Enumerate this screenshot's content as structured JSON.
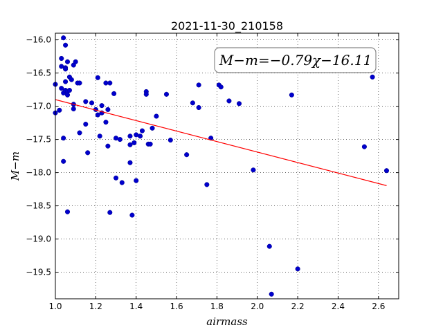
{
  "chart_data": {
    "type": "scatter",
    "title": "2021-11-30_210158",
    "xlabel": "airmass",
    "ylabel": "M−m",
    "xlim": [
      1.0,
      2.7
    ],
    "ylim": [
      -19.9,
      -15.9
    ],
    "y_inverted": true,
    "grid": true,
    "xticks": [
      "1.0",
      "1.2",
      "1.4",
      "1.6",
      "1.8",
      "2.0",
      "2.2",
      "2.4",
      "2.6"
    ],
    "yticks": [
      "−16.0",
      "−16.5",
      "−17.0",
      "−17.5",
      "−18.0",
      "−18.5",
      "−19.0",
      "−19.5"
    ],
    "annotation": "M−m=−0.79χ−16.11",
    "fit": {
      "slope": -0.79,
      "intercept": -16.11,
      "x_range": [
        1.0,
        2.64
      ],
      "color": "#ff0000"
    },
    "point_color": "#0000cc",
    "points": [
      [
        1.0,
        -16.67
      ],
      [
        1.0,
        -17.1
      ],
      [
        1.02,
        -17.06
      ],
      [
        1.03,
        -16.4
      ],
      [
        1.03,
        -16.28
      ],
      [
        1.03,
        -16.73
      ],
      [
        1.04,
        -16.8
      ],
      [
        1.04,
        -17.48
      ],
      [
        1.04,
        -17.83
      ],
      [
        1.04,
        -15.97
      ],
      [
        1.05,
        -16.42
      ],
      [
        1.05,
        -16.44
      ],
      [
        1.05,
        -16.63
      ],
      [
        1.05,
        -16.76
      ],
      [
        1.05,
        -16.08
      ],
      [
        1.06,
        -16.33
      ],
      [
        1.06,
        -16.78
      ],
      [
        1.06,
        -16.83
      ],
      [
        1.06,
        -18.59
      ],
      [
        1.07,
        -16.56
      ],
      [
        1.07,
        -16.76
      ],
      [
        1.08,
        -16.6
      ],
      [
        1.09,
        -16.38
      ],
      [
        1.09,
        -16.97
      ],
      [
        1.09,
        -17.04
      ],
      [
        1.1,
        -16.33
      ],
      [
        1.11,
        -16.65
      ],
      [
        1.12,
        -16.65
      ],
      [
        1.12,
        -17.4
      ],
      [
        1.15,
        -16.93
      ],
      [
        1.15,
        -17.27
      ],
      [
        1.16,
        -17.7
      ],
      [
        1.18,
        -16.95
      ],
      [
        1.2,
        -17.05
      ],
      [
        1.21,
        -16.57
      ],
      [
        1.21,
        -17.13
      ],
      [
        1.22,
        -17.45
      ],
      [
        1.23,
        -16.99
      ],
      [
        1.23,
        -17.1
      ],
      [
        1.25,
        -16.65
      ],
      [
        1.25,
        -17.24
      ],
      [
        1.26,
        -17.05
      ],
      [
        1.26,
        -17.6
      ],
      [
        1.27,
        -18.6
      ],
      [
        1.27,
        -16.65
      ],
      [
        1.29,
        -16.81
      ],
      [
        1.3,
        -17.48
      ],
      [
        1.3,
        -18.08
      ],
      [
        1.32,
        -17.5
      ],
      [
        1.33,
        -18.15
      ],
      [
        1.37,
        -17.45
      ],
      [
        1.37,
        -17.58
      ],
      [
        1.37,
        -17.85
      ],
      [
        1.38,
        -18.64
      ],
      [
        1.39,
        -17.55
      ],
      [
        1.4,
        -17.43
      ],
      [
        1.4,
        -18.12
      ],
      [
        1.42,
        -17.45
      ],
      [
        1.43,
        -17.37
      ],
      [
        1.45,
        -16.78
      ],
      [
        1.45,
        -16.82
      ],
      [
        1.46,
        -17.57
      ],
      [
        1.47,
        -17.57
      ],
      [
        1.48,
        -17.33
      ],
      [
        1.5,
        -17.15
      ],
      [
        1.55,
        -16.82
      ],
      [
        1.57,
        -17.51
      ],
      [
        1.65,
        -17.73
      ],
      [
        1.68,
        -16.95
      ],
      [
        1.71,
        -16.68
      ],
      [
        1.71,
        -17.02
      ],
      [
        1.75,
        -18.18
      ],
      [
        1.77,
        -17.48
      ],
      [
        1.81,
        -16.68
      ],
      [
        1.82,
        -16.71
      ],
      [
        1.86,
        -16.92
      ],
      [
        1.91,
        -16.96
      ],
      [
        1.98,
        -17.96
      ],
      [
        2.06,
        -19.11
      ],
      [
        2.07,
        -19.83
      ],
      [
        2.17,
        -16.83
      ],
      [
        2.2,
        -19.45
      ],
      [
        2.53,
        -17.61
      ],
      [
        2.57,
        -16.56
      ],
      [
        2.64,
        -17.97
      ]
    ]
  }
}
